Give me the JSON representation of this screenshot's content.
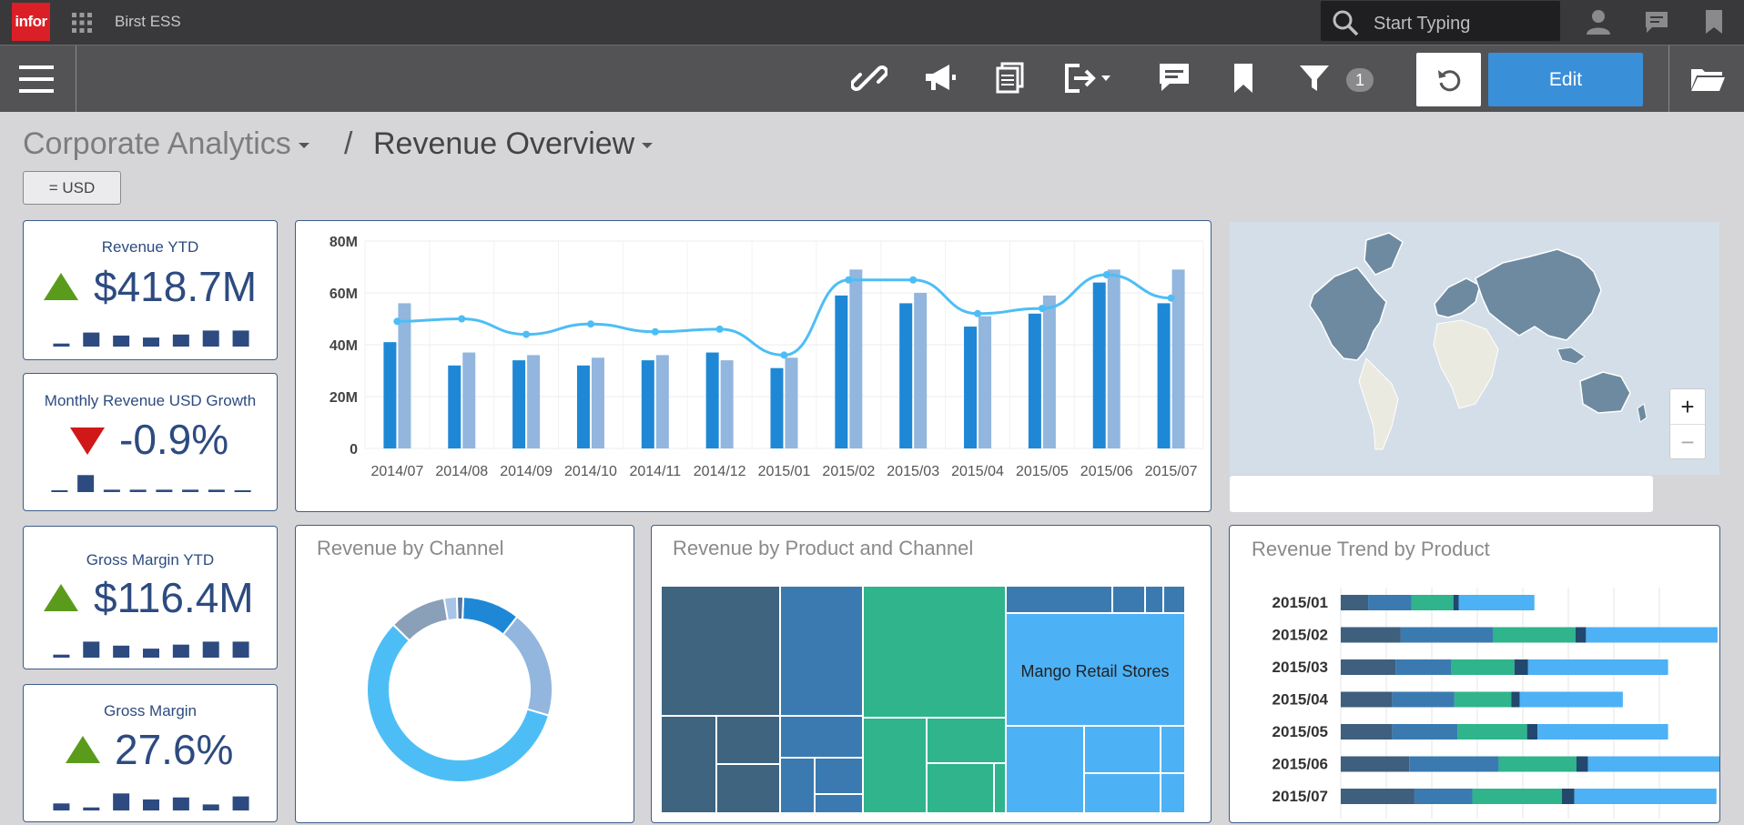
{
  "topbar": {
    "logo": "infor",
    "app_name": "Birst ESS",
    "search_placeholder": "Start Typing"
  },
  "toolbar": {
    "filter_count": "1",
    "edit_label": "Edit"
  },
  "breadcrumb": {
    "parent": "Corporate Analytics",
    "separator": "/",
    "current": "Revenue Overview"
  },
  "filter_chip": "= USD",
  "kpis": [
    {
      "title": "Revenue YTD",
      "value": "$418.7M",
      "trend": "up",
      "spark": [
        0.15,
        0.7,
        0.55,
        0.45,
        0.6,
        0.8,
        0.8
      ]
    },
    {
      "title": "Monthly Revenue USD Growth",
      "value": "-0.9%",
      "trend": "down",
      "spark": [
        0.05,
        0.85,
        0.12,
        0.12,
        0.12,
        0.12,
        0.12,
        0.03
      ]
    },
    {
      "title": "Gross Margin YTD",
      "value": "$116.4M",
      "trend": "up",
      "spark": [
        0.15,
        0.8,
        0.6,
        0.45,
        0.65,
        0.8,
        0.8
      ]
    },
    {
      "title": "Gross Margin",
      "value": "27.6%",
      "trend": "up",
      "spark": [
        0.35,
        0.15,
        0.85,
        0.55,
        0.65,
        0.3,
        0.7
      ]
    }
  ],
  "colors": {
    "bar_dark": "#1e88d6",
    "bar_light": "#92b6de",
    "line": "#4dbef5",
    "up": "#5a9b1c",
    "down": "#d01818",
    "kpi_text": "#2d4b80"
  },
  "chart_data": [
    {
      "type": "bar",
      "categories": [
        "2014/07",
        "2014/08",
        "2014/09",
        "2014/10",
        "2014/11",
        "2014/12",
        "2015/01",
        "2015/02",
        "2015/03",
        "2015/04",
        "2015/05",
        "2015/06",
        "2015/07"
      ],
      "series": [
        {
          "values": [
            41,
            32,
            34,
            32,
            34,
            37,
            31,
            59,
            56,
            47,
            52,
            64,
            56
          ]
        },
        {
          "values": [
            56,
            37,
            36,
            35,
            36,
            34,
            35,
            69,
            60,
            51,
            59,
            69,
            69
          ]
        },
        {
          "type": "line",
          "values": [
            49,
            50,
            44,
            48,
            45,
            46,
            36,
            65,
            65,
            52,
            54,
            67,
            58
          ]
        }
      ],
      "yticks": [
        "80M",
        "60M",
        "40M",
        "20M",
        "0"
      ],
      "ylim": [
        0,
        80
      ]
    },
    {
      "type": "pie",
      "title": "Revenue by Channel",
      "values": [
        9,
        17,
        52,
        9,
        2,
        1
      ],
      "colors": [
        "#1e88d6",
        "#92b6de",
        "#4dbef5",
        "#8a9fb8",
        "#a9c4e6",
        "#5578a0"
      ]
    },
    {
      "type": "heatmap",
      "title": "Revenue by Product and Channel",
      "label": "Mango Retail Stores"
    },
    {
      "type": "bar",
      "title": "Revenue Trend by Product",
      "categories": [
        "2015/01",
        "2015/02",
        "2015/03",
        "2015/04",
        "2015/05",
        "2015/06",
        "2015/07"
      ],
      "series": [
        {
          "values": [
            2.6,
            5.7,
            5.2,
            4.9,
            4.9,
            6.5,
            7.0
          ]
        },
        {
          "values": [
            4.1,
            8.8,
            5.3,
            5.9,
            6.2,
            8.5,
            5.5
          ]
        },
        {
          "values": [
            4.0,
            7.8,
            6.0,
            5.4,
            6.6,
            7.4,
            8.5
          ]
        },
        {
          "values": [
            0.5,
            1.0,
            1.3,
            0.8,
            1.0,
            1.1,
            1.2
          ]
        },
        {
          "values": [
            7.2,
            12.5,
            13.3,
            9.8,
            12.4,
            12.6,
            13.5
          ]
        }
      ],
      "colors": [
        "#3e5f7e",
        "#3a7ab0",
        "#2fb48c",
        "#22486e",
        "#4db1f5"
      ]
    }
  ]
}
